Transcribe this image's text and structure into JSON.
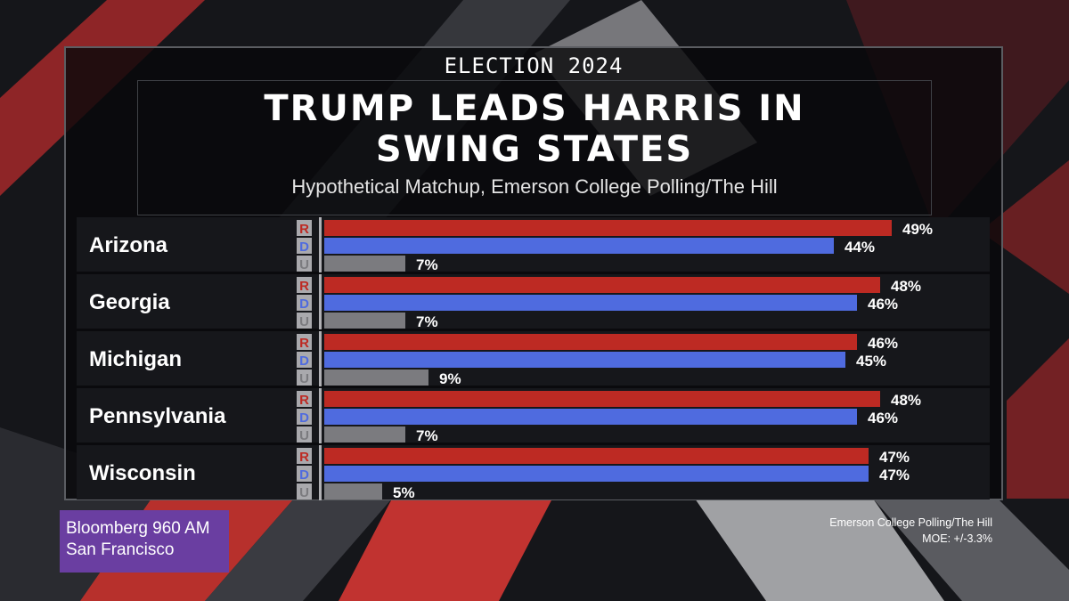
{
  "header": {
    "kicker": "ELECTION 2024",
    "title": "TRUMP LEADS HARRIS IN SWING STATES",
    "subtitle": "Hypothetical Matchup, Emerson College Polling/The Hill"
  },
  "colors": {
    "R": "#bd2a23",
    "D": "#4f6bdf",
    "U": "#7b7b7f",
    "row_bg": "#16171b",
    "panel_bg": "#08080a",
    "badge_bg": "#a9a9ad",
    "logo_bg": "#6a3ea1"
  },
  "chart_data": {
    "type": "bar",
    "orientation": "horizontal",
    "categories": [
      "Arizona",
      "Georgia",
      "Michigan",
      "Pennsylvania",
      "Wisconsin"
    ],
    "series": [
      {
        "name": "R",
        "values": [
          49,
          48,
          46,
          48,
          47
        ]
      },
      {
        "name": "D",
        "values": [
          44,
          46,
          45,
          46,
          47
        ]
      },
      {
        "name": "U",
        "values": [
          7,
          7,
          9,
          7,
          5
        ]
      }
    ],
    "value_labels": [
      [
        "49%",
        "44%",
        "7%"
      ],
      [
        "48%",
        "46%",
        "7%"
      ],
      [
        "46%",
        "45%",
        "9%"
      ],
      [
        "48%",
        "46%",
        "7%"
      ],
      [
        "47%",
        "47%",
        "5%"
      ]
    ],
    "unit": "%",
    "xlim": [
      0,
      50
    ],
    "grid": false
  },
  "footer": {
    "logo_line1": "Bloomberg 960 AM",
    "logo_line2": "San Francisco",
    "source_line1": "Emerson College Polling/The Hill",
    "source_line2": "MOE: +/-3.3%"
  }
}
